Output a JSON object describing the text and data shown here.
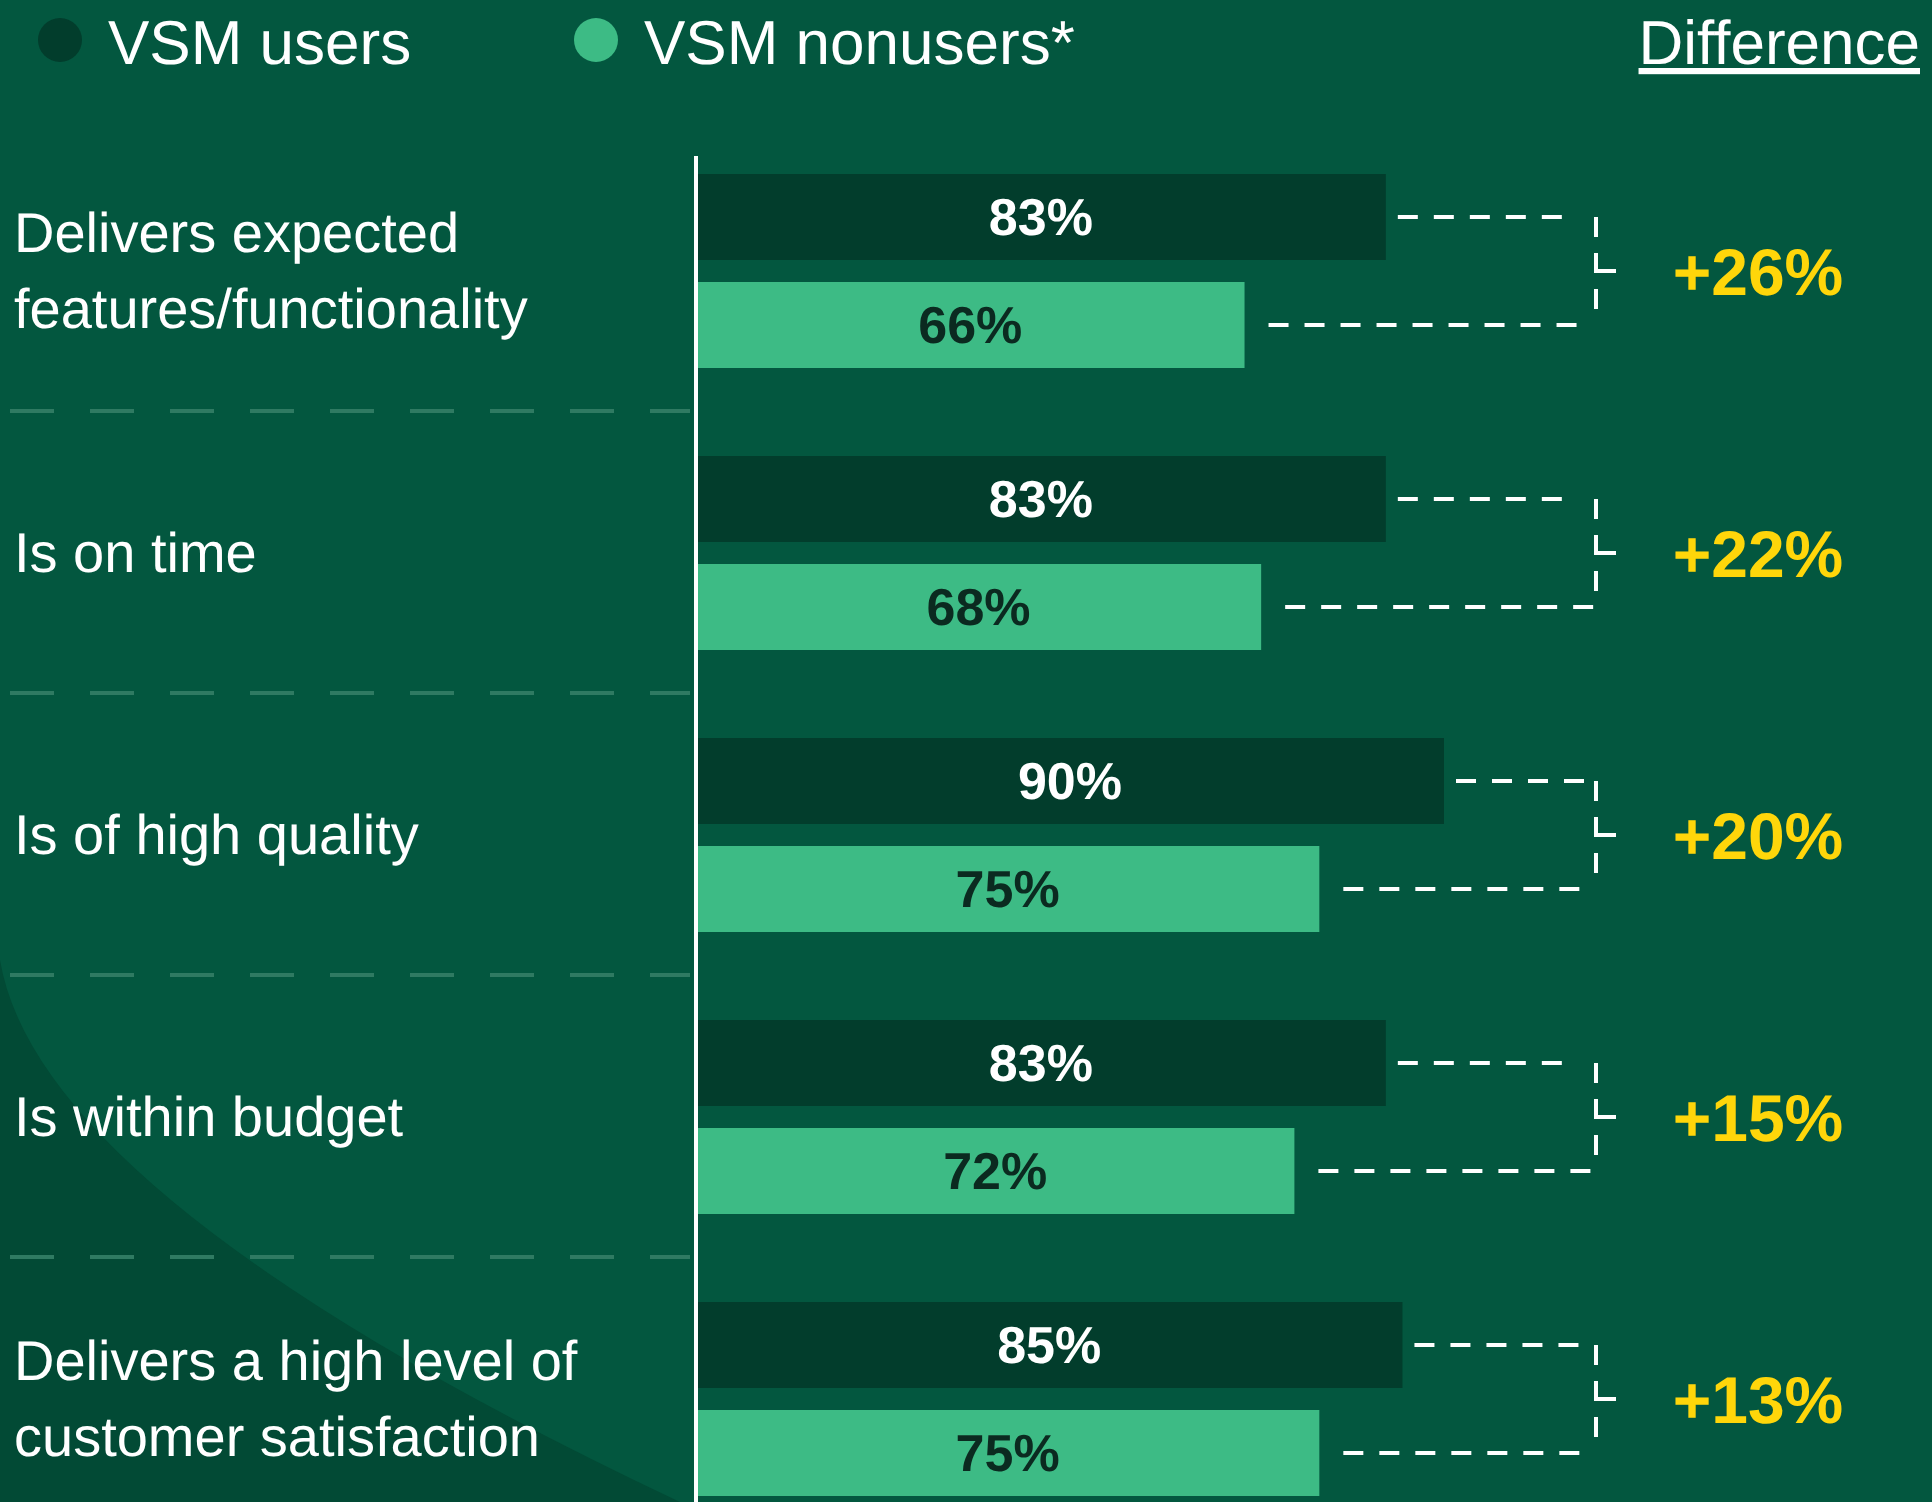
{
  "chart_data": {
    "type": "bar",
    "orientation": "horizontal",
    "legend": "top",
    "categories": [
      "Delivers expected features/functionality",
      "Is on time",
      "Is of high quality",
      "Is within budget",
      "Delivers a high level of customer satisfaction"
    ],
    "series": [
      {
        "name": "VSM users",
        "color": "#023d2c",
        "values": [
          83,
          83,
          90,
          83,
          85
        ],
        "value_labels": [
          "83%",
          "83%",
          "90%",
          "83%",
          "85%"
        ]
      },
      {
        "name": "VSM nonusers*",
        "color": "#3dbb85",
        "values": [
          66,
          68,
          75,
          72,
          75
        ],
        "value_labels": [
          "66%",
          "68%",
          "75%",
          "72%",
          "75%"
        ]
      }
    ],
    "annotations": [
      "Difference",
      "+26%",
      "+22%",
      "+20%",
      "+15%",
      "+13%"
    ]
  }
}
